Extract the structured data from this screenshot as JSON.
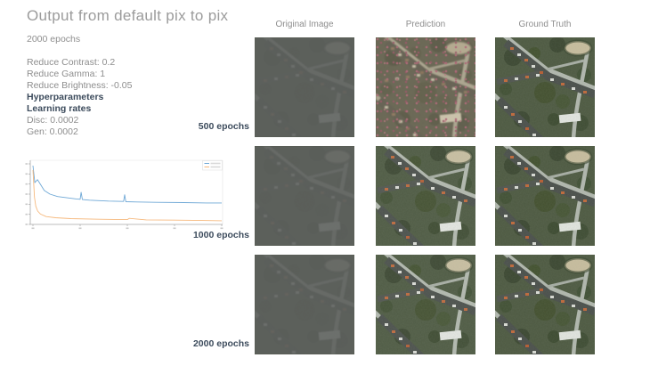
{
  "page": {
    "title": "Output from default pix to pix",
    "epochs_subtitle": "2000 epochs"
  },
  "params": {
    "reduce_contrast": "Reduce Contrast: 0.2",
    "reduce_gamma": "Reduce Gamma: 1",
    "reduce_brightness": "Reduce Brightness: -0.05",
    "hyperparameters_heading": "Hyperparameters",
    "learning_rates_heading": "Learning rates",
    "disc_rate": "Disc: 0.0002",
    "gen_rate": "Gen: 0.0002"
  },
  "chart_data": {
    "type": "line",
    "title": "",
    "xlabel": "",
    "ylabel": "",
    "note": "training loss curves; axis tick labels and legend text are rendered too small to be legible in the screenshot; x is normalized training progress 0-1, y is normalized loss 0-1 estimated from pixel positions",
    "x_ticks": [
      0,
      0.25,
      0.5,
      0.75,
      1
    ],
    "y_tick_count": 7,
    "xlim": [
      0,
      1
    ],
    "ylim": [
      0,
      1
    ],
    "grid": false,
    "legend": {
      "position": "top-right",
      "labels_illegible": true
    },
    "series": [
      {
        "name": "blue-loss-curve",
        "color": "#6fa8d6",
        "x": [
          0,
          0.01,
          0.024,
          0.04,
          0.06,
          0.09,
          0.13,
          0.18,
          0.23,
          0.25,
          0.255,
          0.262,
          0.3,
          0.4,
          0.48,
          0.486,
          0.492,
          0.55,
          0.65,
          0.8,
          0.92,
          1.0
        ],
        "y": [
          0.97,
          0.69,
          0.74,
          0.66,
          0.56,
          0.5,
          0.46,
          0.44,
          0.42,
          0.415,
          0.53,
          0.41,
          0.4,
          0.385,
          0.38,
          0.49,
          0.375,
          0.37,
          0.365,
          0.36,
          0.355,
          0.355
        ]
      },
      {
        "name": "orange-loss-curve",
        "color": "#f6b97e",
        "x": [
          0,
          0.008,
          0.015,
          0.025,
          0.04,
          0.07,
          0.12,
          0.2,
          0.35,
          0.5,
          0.51,
          0.6,
          0.75,
          0.9,
          1.0
        ],
        "y": [
          0.9,
          0.45,
          0.3,
          0.22,
          0.17,
          0.13,
          0.11,
          0.095,
          0.085,
          0.08,
          0.1,
          0.075,
          0.07,
          0.065,
          0.06
        ]
      }
    ]
  },
  "grid": {
    "column_headers": [
      "Original Image",
      "Prediction",
      "Ground Truth"
    ],
    "row_labels": [
      "500 epochs",
      "1000 epochs",
      "2000 epochs"
    ]
  }
}
